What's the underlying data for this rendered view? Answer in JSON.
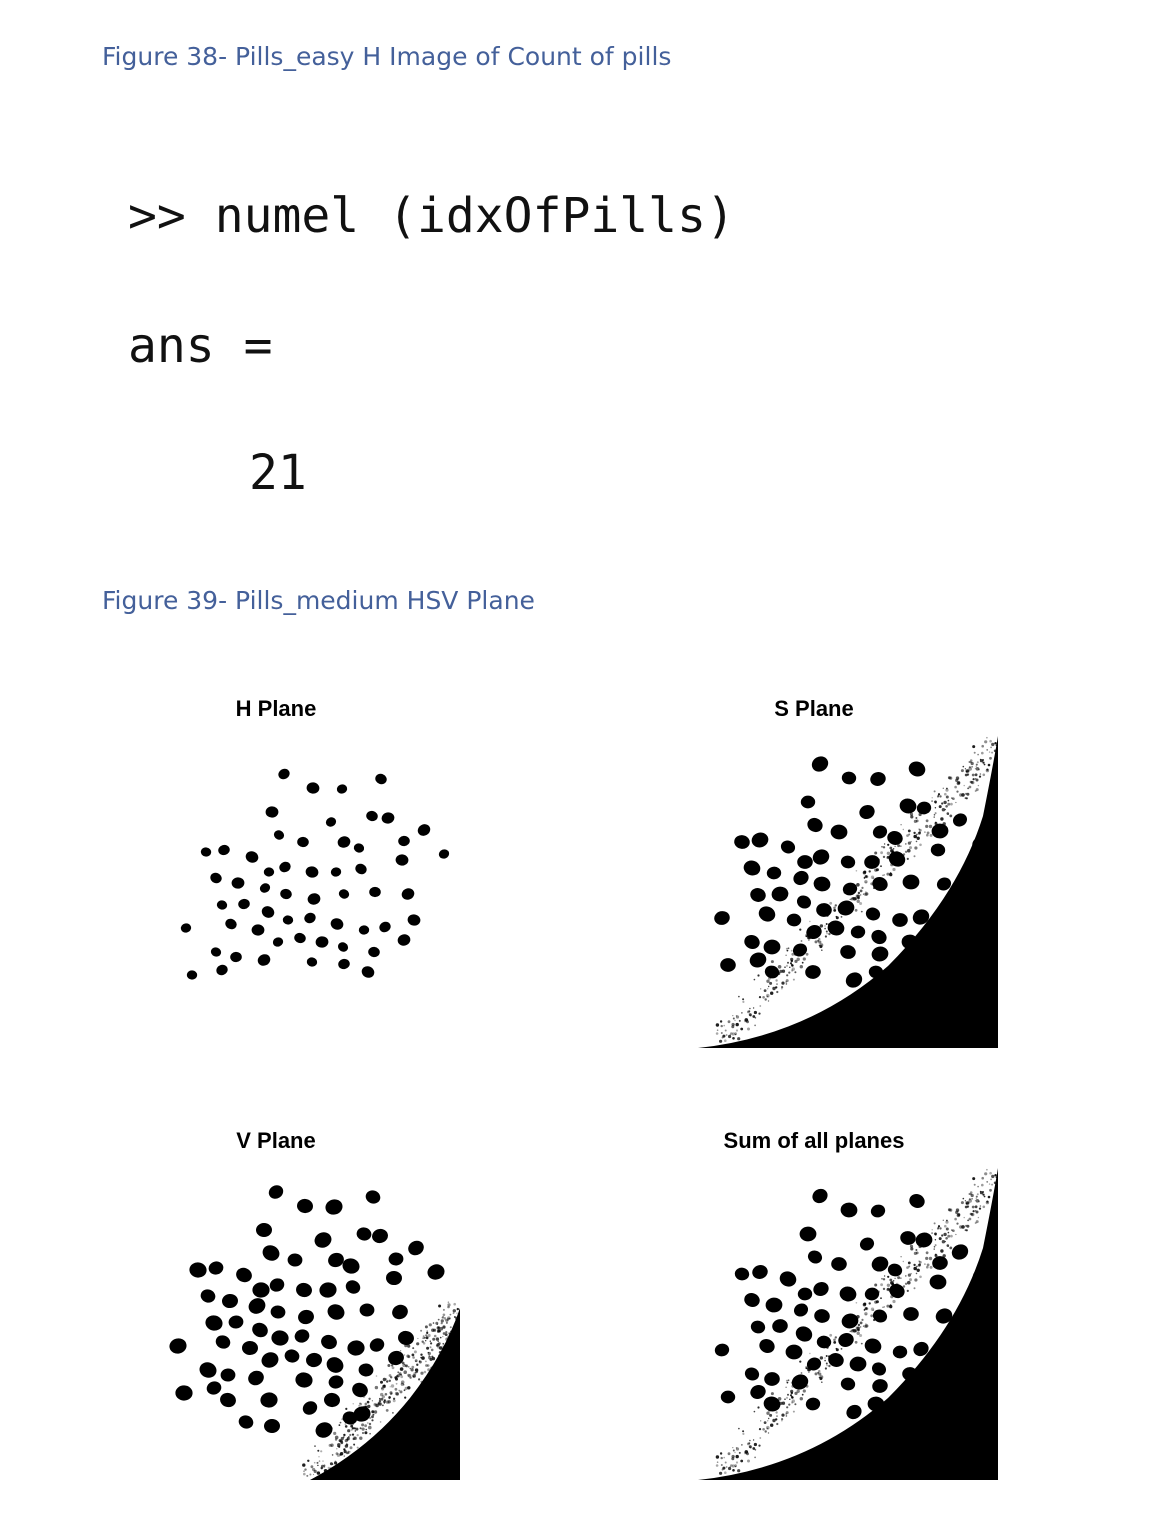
{
  "figure38": {
    "caption": "Figure 38- Pills_easy H Image of Count of pills",
    "command": ">> numel (idxOfPills)",
    "ans_label": "ans =",
    "ans_value": "21"
  },
  "figure39": {
    "caption": "Figure 39- Pills_medium HSV Plane",
    "panels": [
      {
        "title": "H Plane"
      },
      {
        "title": "S Plane"
      },
      {
        "title": "V Plane"
      },
      {
        "title": "Sum of all planes"
      }
    ]
  }
}
